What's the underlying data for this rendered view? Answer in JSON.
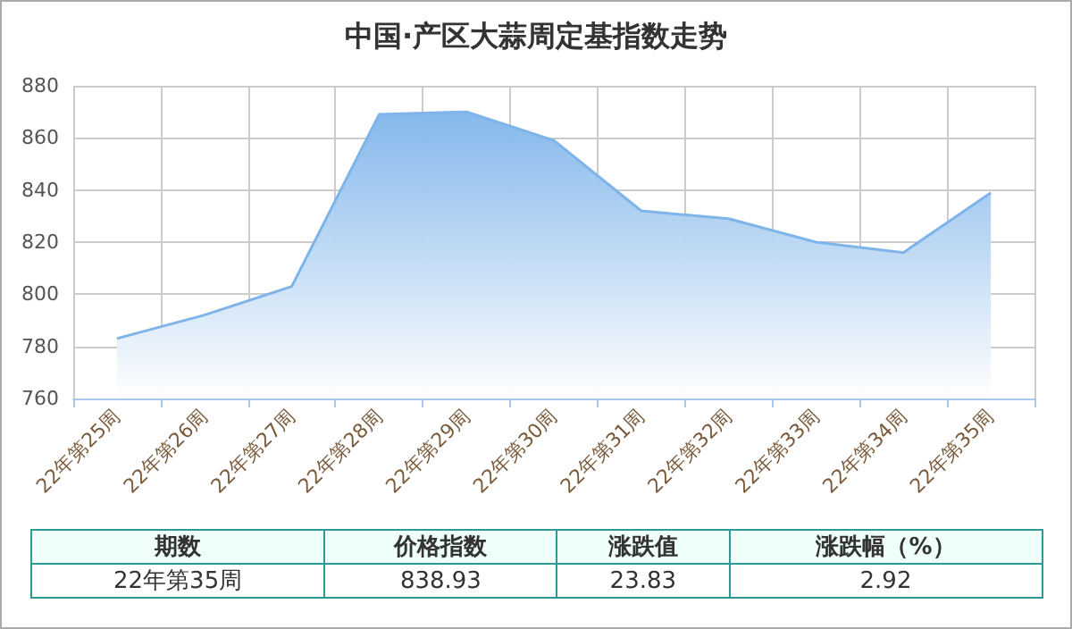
{
  "chart_data": {
    "type": "area",
    "title": "中国·产区大蒜周定基指数走势",
    "categories": [
      "22年第25周",
      "22年第26周",
      "22年第27周",
      "22年第28周",
      "22年第29周",
      "22年第30周",
      "22年第31周",
      "22年第32周",
      "22年第33周",
      "22年第34周",
      "22年第35周"
    ],
    "series": [
      {
        "color": "#7eb4ea",
        "values": [
          783,
          792,
          803,
          869,
          870,
          859,
          832,
          829,
          820,
          816,
          838.93
        ]
      }
    ],
    "ylim": [
      760,
      880
    ],
    "yticks": [
      760,
      780,
      800,
      820,
      840,
      860,
      880
    ],
    "grid": true,
    "marker": "none",
    "annotations": [
      "期数",
      "价格指数",
      "涨跌值",
      "涨跌幅（%）",
      "22年第35周",
      "838.93",
      "23.83",
      "2.92"
    ]
  }
}
